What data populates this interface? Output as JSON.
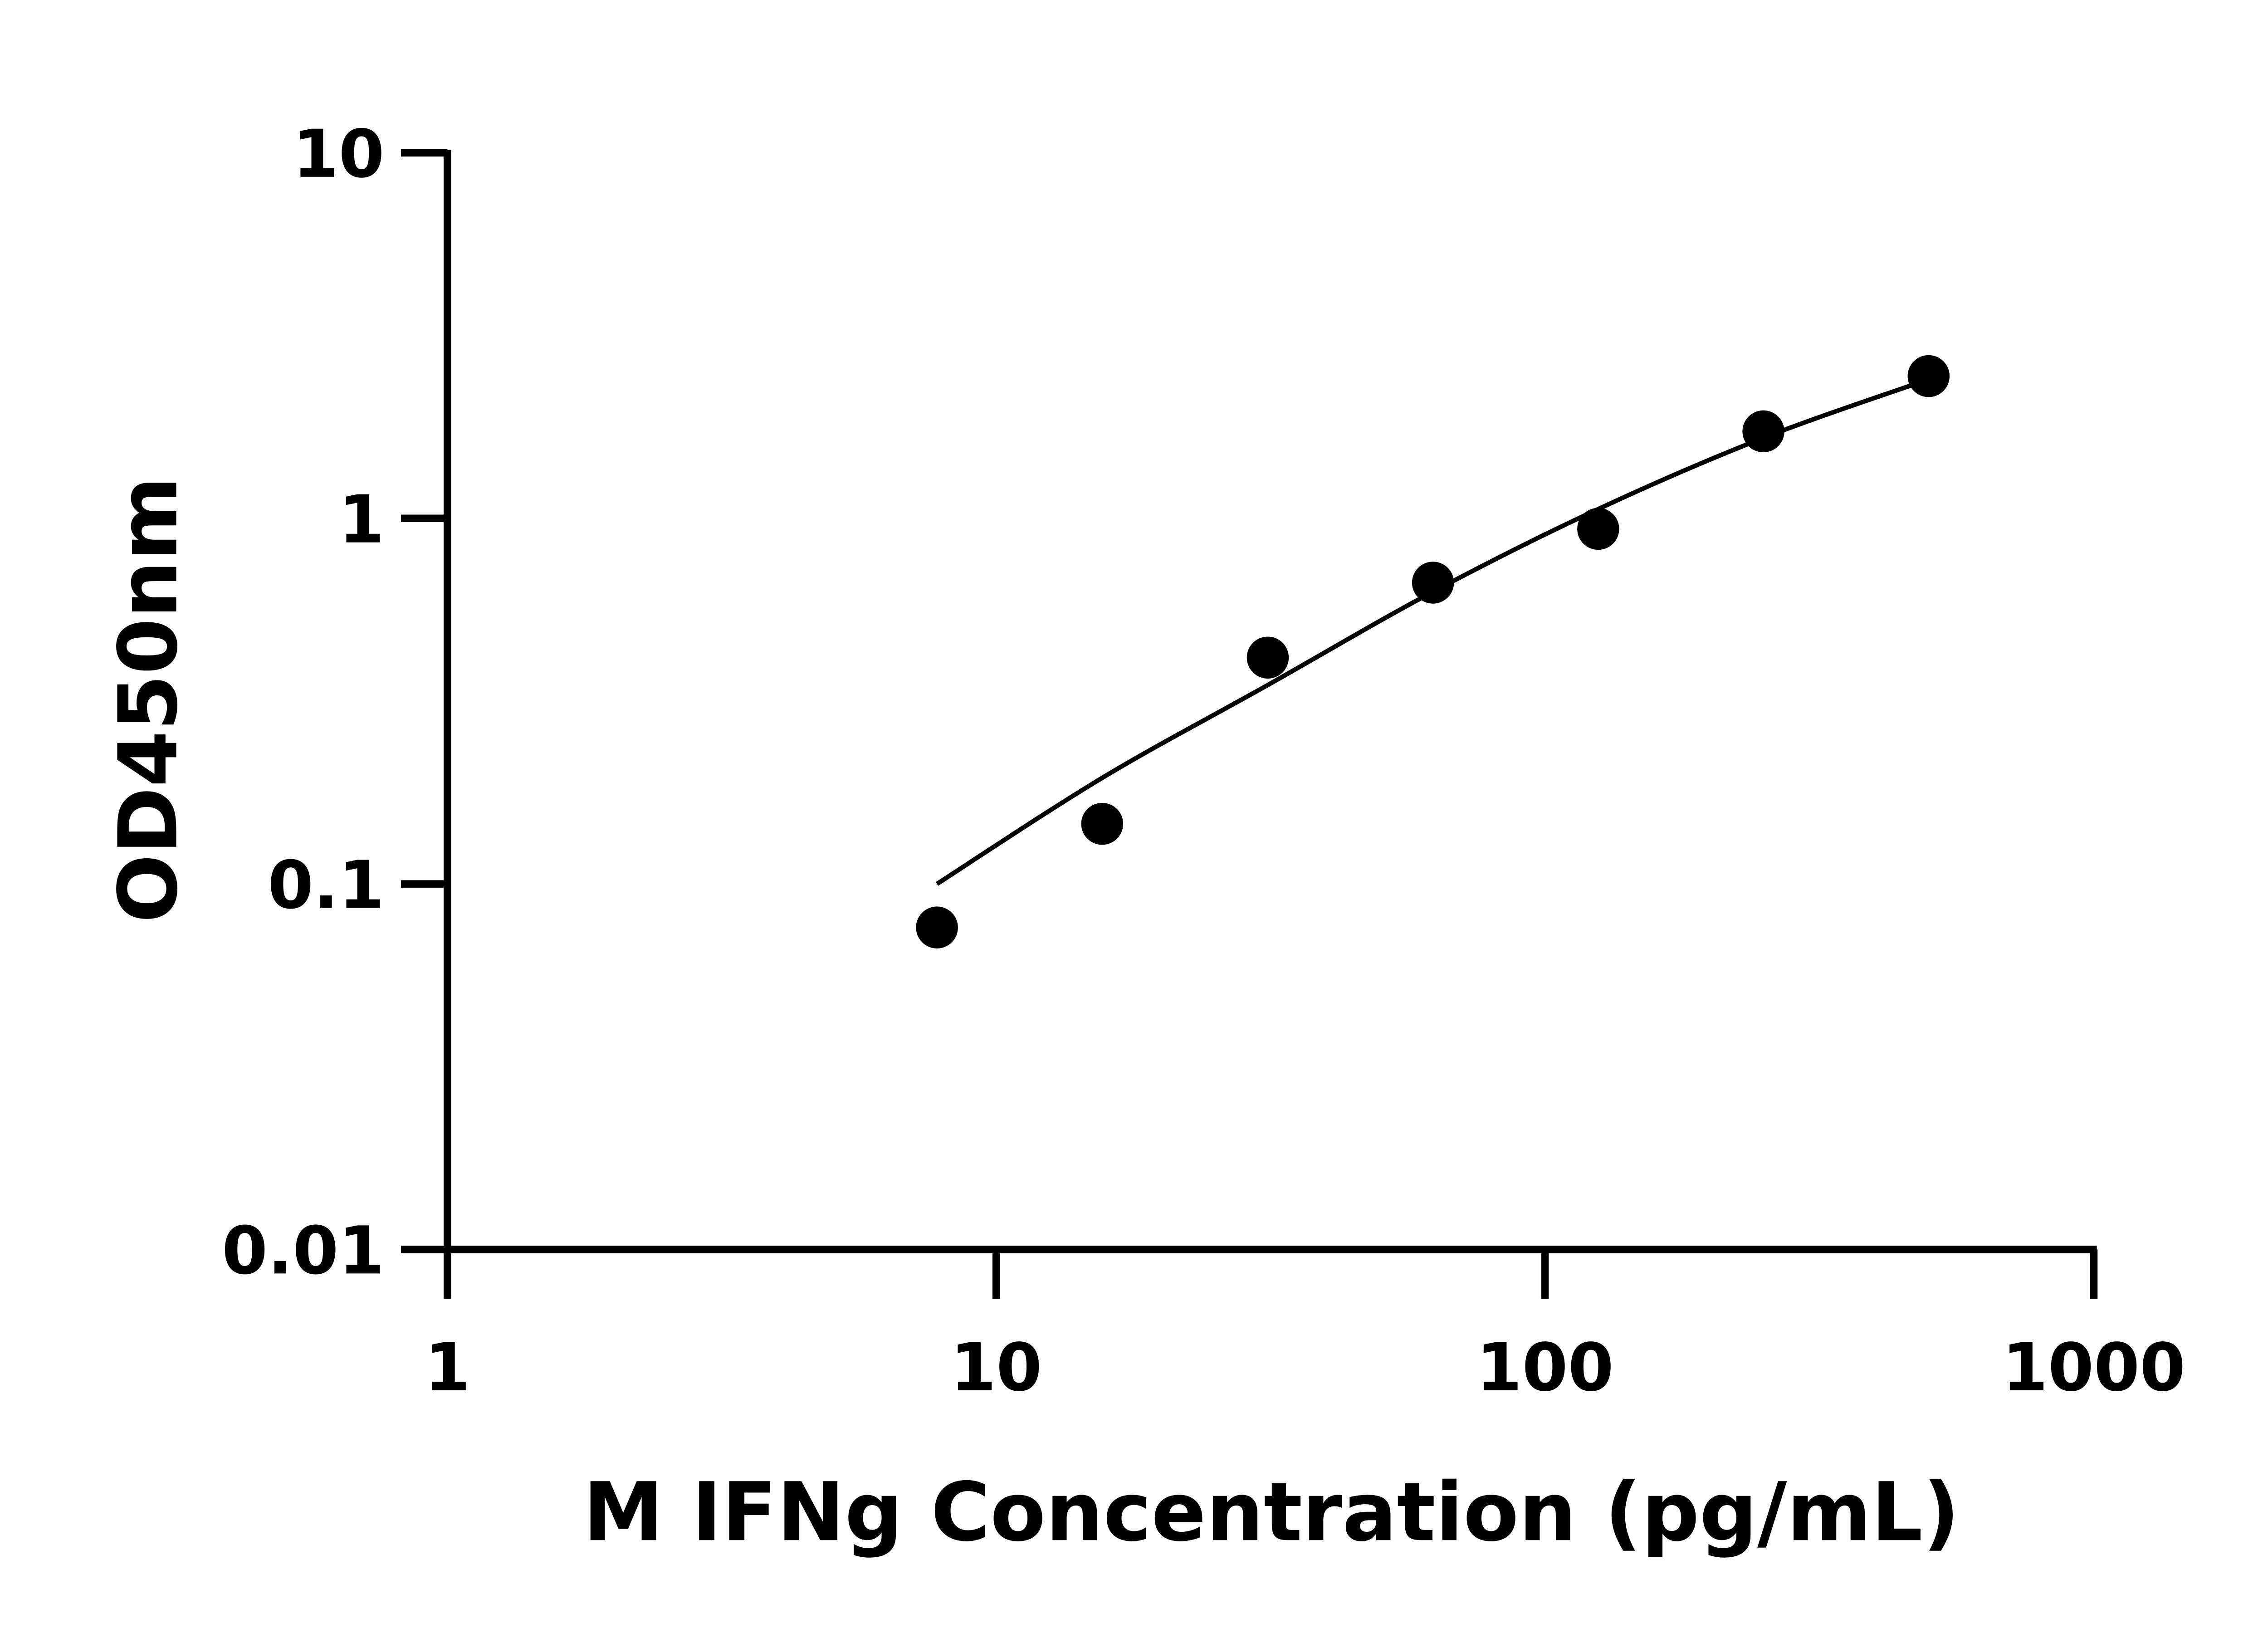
{
  "chart_data": {
    "type": "scatter",
    "title": "",
    "xlabel": "M IFNg Concentration (pg/mL)",
    "ylabel": "OD450nm",
    "xscale": "log",
    "yscale": "log",
    "xlim": [
      1,
      1000
    ],
    "ylim": [
      0.01,
      10
    ],
    "xticks": [
      1,
      10,
      100,
      1000
    ],
    "xtick_labels": [
      "1",
      "10",
      "100",
      "1000"
    ],
    "yticks": [
      0.01,
      0.1,
      1,
      10
    ],
    "ytick_labels": [
      "0.01",
      "0.1",
      "1",
      "10"
    ],
    "grid": false,
    "legend": "none",
    "colors": {
      "points": "#000000",
      "curve": "#000000",
      "axes": "#000000"
    },
    "series": [
      {
        "kind": "points",
        "x": [
          7.8,
          15.6,
          31.25,
          62.5,
          125,
          250,
          500
        ],
        "y": [
          0.076,
          0.146,
          0.416,
          0.667,
          0.936,
          1.73,
          2.45
        ]
      },
      {
        "kind": "fit-curve",
        "x": [
          7.8,
          15.6,
          31.25,
          62.5,
          125,
          250,
          500
        ],
        "y": [
          0.1,
          0.195,
          0.35,
          0.63,
          1.06,
          1.66,
          2.4
        ]
      }
    ]
  }
}
